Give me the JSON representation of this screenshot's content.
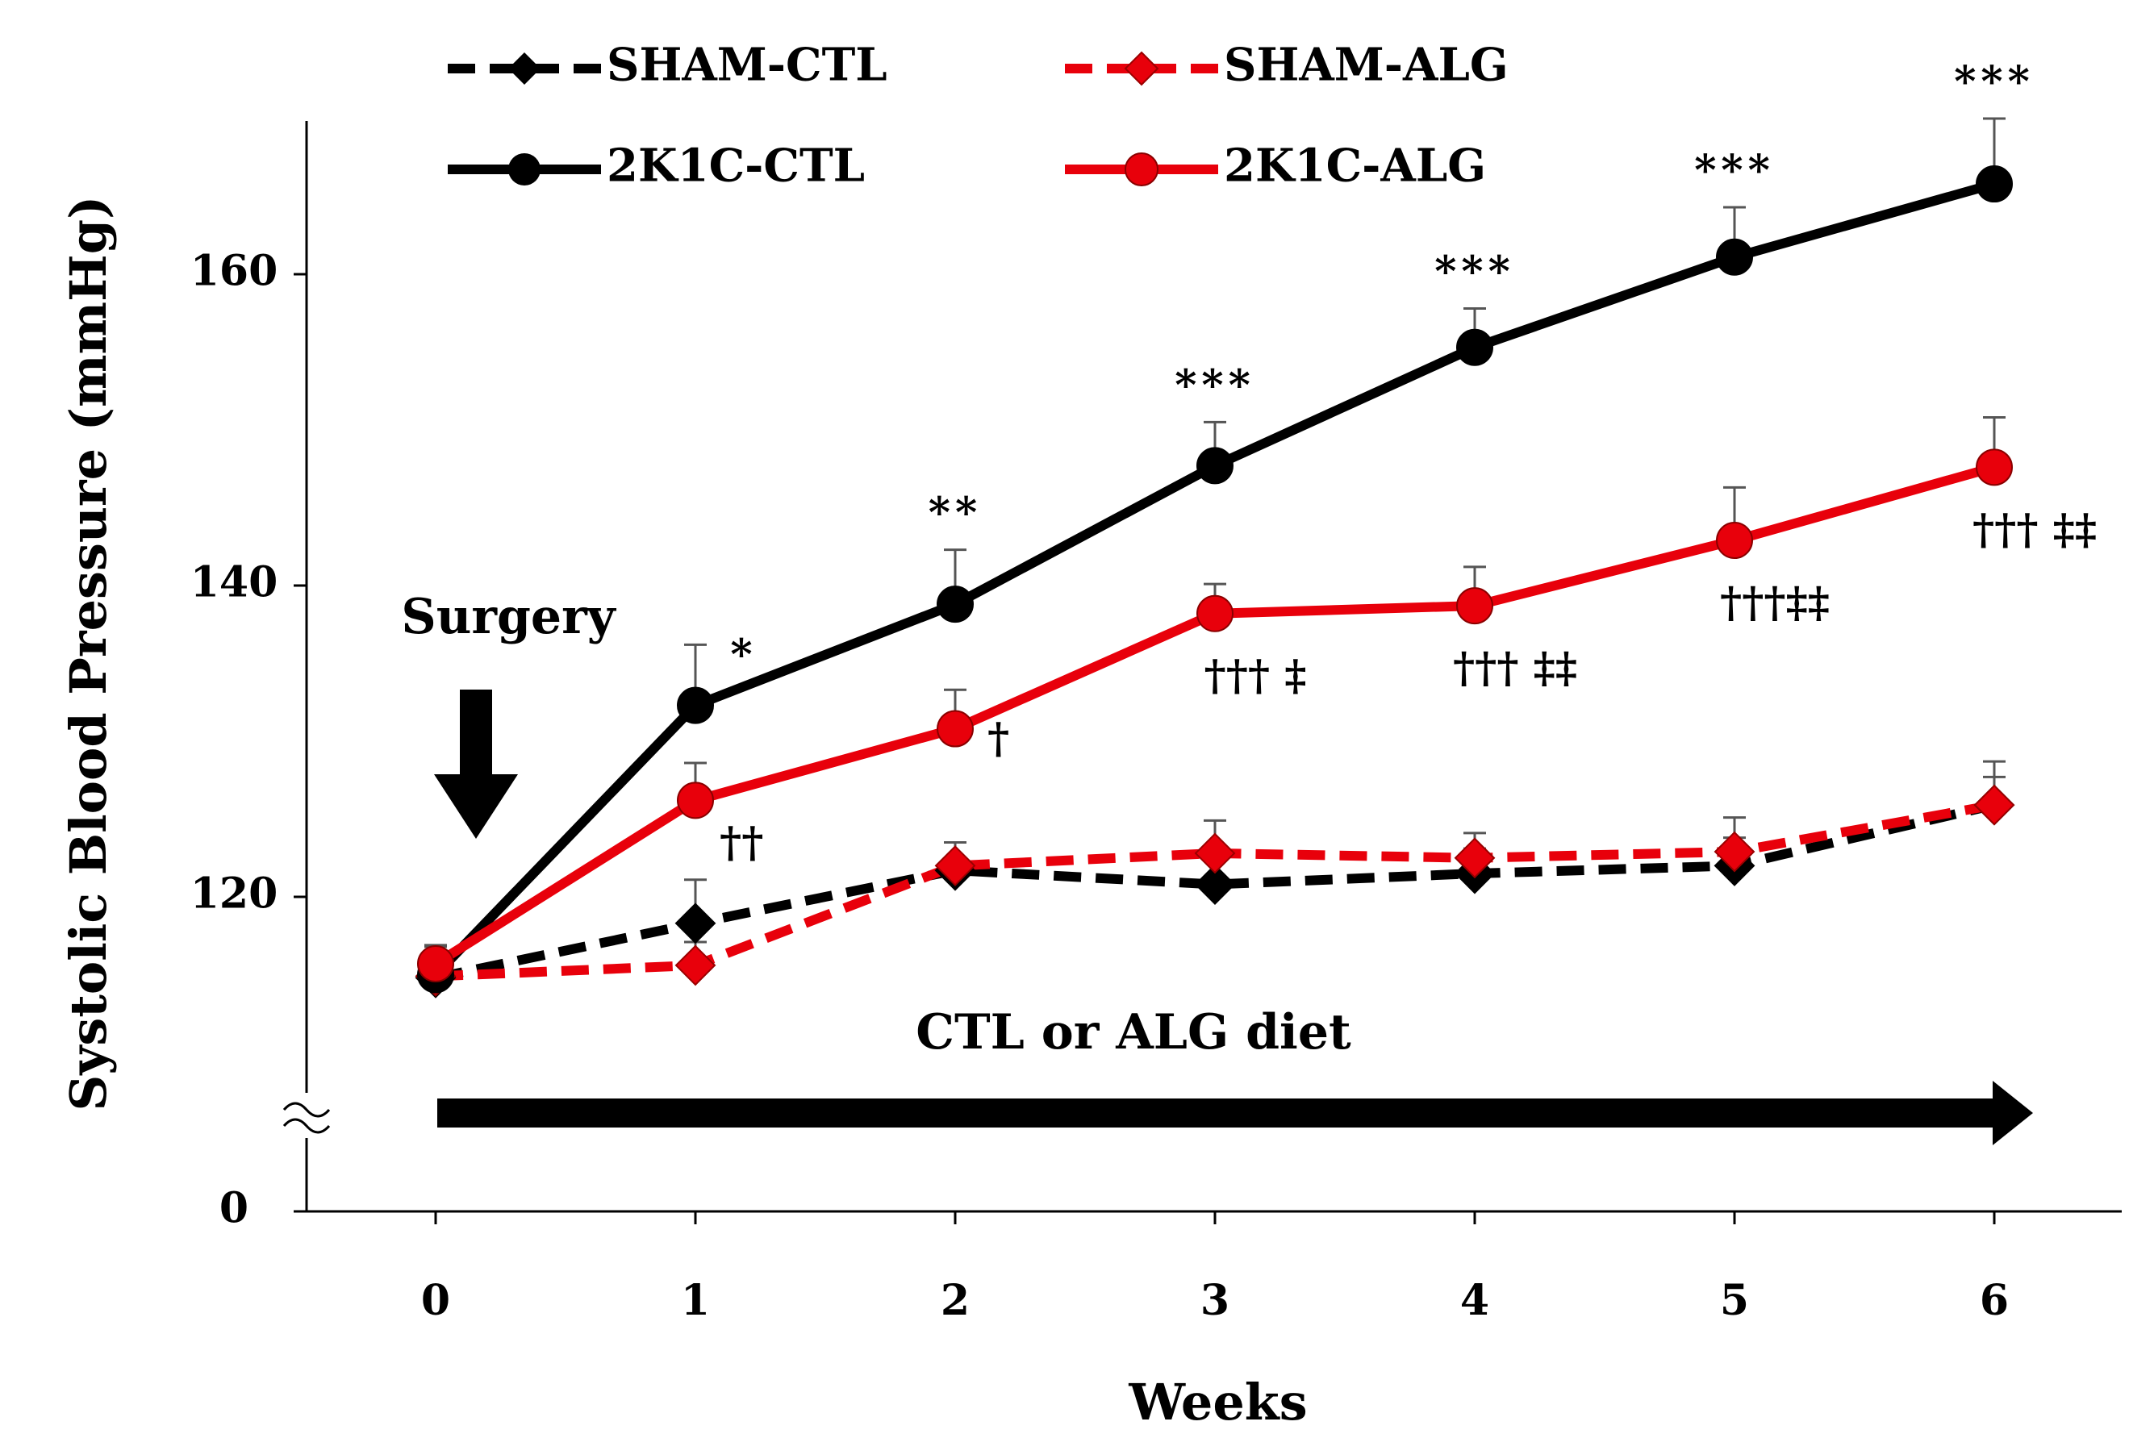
{
  "chart_data": {
    "type": "line",
    "title": "",
    "xlabel": "Weeks",
    "ylabel": "Systolic Blood Pressure (mmHg)",
    "x": [
      0,
      1,
      2,
      3,
      4,
      5,
      6
    ],
    "x_ticks": [
      "0",
      "1",
      "2",
      "3",
      "4",
      "5",
      "6"
    ],
    "ylim": [
      110,
      170
    ],
    "y_ticks": [
      120,
      140,
      160
    ],
    "y_tick_labels": [
      "120",
      "140",
      "160"
    ],
    "y_break_label": "0",
    "series": [
      {
        "name": "SHAM-CTL",
        "color": "#000000",
        "line": "dashed",
        "marker": "diamond",
        "values": [
          114.8,
          118.3,
          121.7,
          120.8,
          121.5,
          122.0,
          125.9
        ],
        "error": [
          2.0,
          2.8,
          1.8,
          1.6,
          1.6,
          1.8,
          1.8
        ]
      },
      {
        "name": "SHAM-ALG",
        "color": "#e8000b",
        "line": "dashed",
        "marker": "diamond",
        "values": [
          114.9,
          115.6,
          122.0,
          122.8,
          122.5,
          122.9,
          125.9
        ],
        "error": [
          1.2,
          1.5,
          1.5,
          2.1,
          1.6,
          2.2,
          2.8
        ]
      },
      {
        "name": "2K1C-CTL",
        "color": "#000000",
        "line": "solid",
        "marker": "circle",
        "values": [
          115.0,
          132.3,
          138.8,
          147.7,
          155.3,
          161.1,
          165.8
        ],
        "error": [
          1.0,
          3.9,
          3.5,
          2.8,
          2.5,
          3.2,
          4.2
        ]
      },
      {
        "name": "2K1C-ALG",
        "color": "#e8000b",
        "line": "solid",
        "marker": "circle",
        "values": [
          115.7,
          126.2,
          130.8,
          138.2,
          138.7,
          142.9,
          147.6
        ],
        "error": [
          1.2,
          2.4,
          2.5,
          1.9,
          2.5,
          3.4,
          3.2
        ]
      }
    ],
    "significance": [
      {
        "x": 1,
        "label": "*",
        "series": "2K1C-CTL"
      },
      {
        "x": 2,
        "label": "**",
        "series": "2K1C-CTL"
      },
      {
        "x": 3,
        "label": "***",
        "series": "2K1C-CTL"
      },
      {
        "x": 4,
        "label": "***",
        "series": "2K1C-CTL"
      },
      {
        "x": 5,
        "label": "***",
        "series": "2K1C-CTL"
      },
      {
        "x": 6,
        "label": "***",
        "series": "2K1C-CTL"
      },
      {
        "x": 1,
        "label": "††",
        "series": "2K1C-ALG"
      },
      {
        "x": 2,
        "label": "†",
        "series": "2K1C-ALG"
      },
      {
        "x": 3,
        "label": "††† ‡",
        "series": "2K1C-ALG"
      },
      {
        "x": 4,
        "label": "††† ‡‡",
        "series": "2K1C-ALG"
      },
      {
        "x": 5,
        "label": "†††‡‡",
        "series": "2K1C-ALG"
      },
      {
        "x": 6,
        "label": "††† ‡‡",
        "series": "2K1C-ALG"
      }
    ],
    "annotations": {
      "surgery": "Surgery",
      "diet": "CTL or ALG diet"
    },
    "legend_position": "top"
  }
}
